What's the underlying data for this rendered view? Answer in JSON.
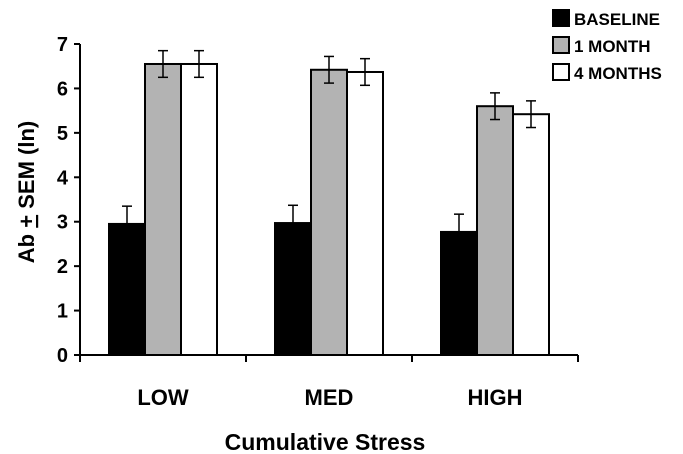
{
  "chart_data": {
    "type": "bar",
    "categories": [
      "LOW",
      "MED",
      "HIGH"
    ],
    "series": [
      {
        "name": "BASELINE",
        "values": [
          2.95,
          2.97,
          2.77
        ],
        "errors": [
          0.4,
          0.4,
          0.4
        ],
        "color": "#000000"
      },
      {
        "name": "1 MONTH",
        "values": [
          6.55,
          6.42,
          5.6
        ],
        "errors": [
          0.3,
          0.3,
          0.3
        ],
        "color": "#b3b3b3"
      },
      {
        "name": "4 MONTHS",
        "values": [
          6.55,
          6.37,
          5.42
        ],
        "errors": [
          0.3,
          0.3,
          0.3
        ],
        "color": "#ffffff"
      }
    ],
    "xlabel": "Cumulative Stress",
    "ylabel_prefix": "Ab ",
    "ylabel_pm": "+",
    "ylabel_suffix": " SEM (ln)",
    "ylim": [
      0,
      7
    ],
    "yticks": [
      "0",
      "1",
      "2",
      "3",
      "4",
      "5",
      "6",
      "7"
    ],
    "grid": false,
    "legend_position": "top-right"
  }
}
